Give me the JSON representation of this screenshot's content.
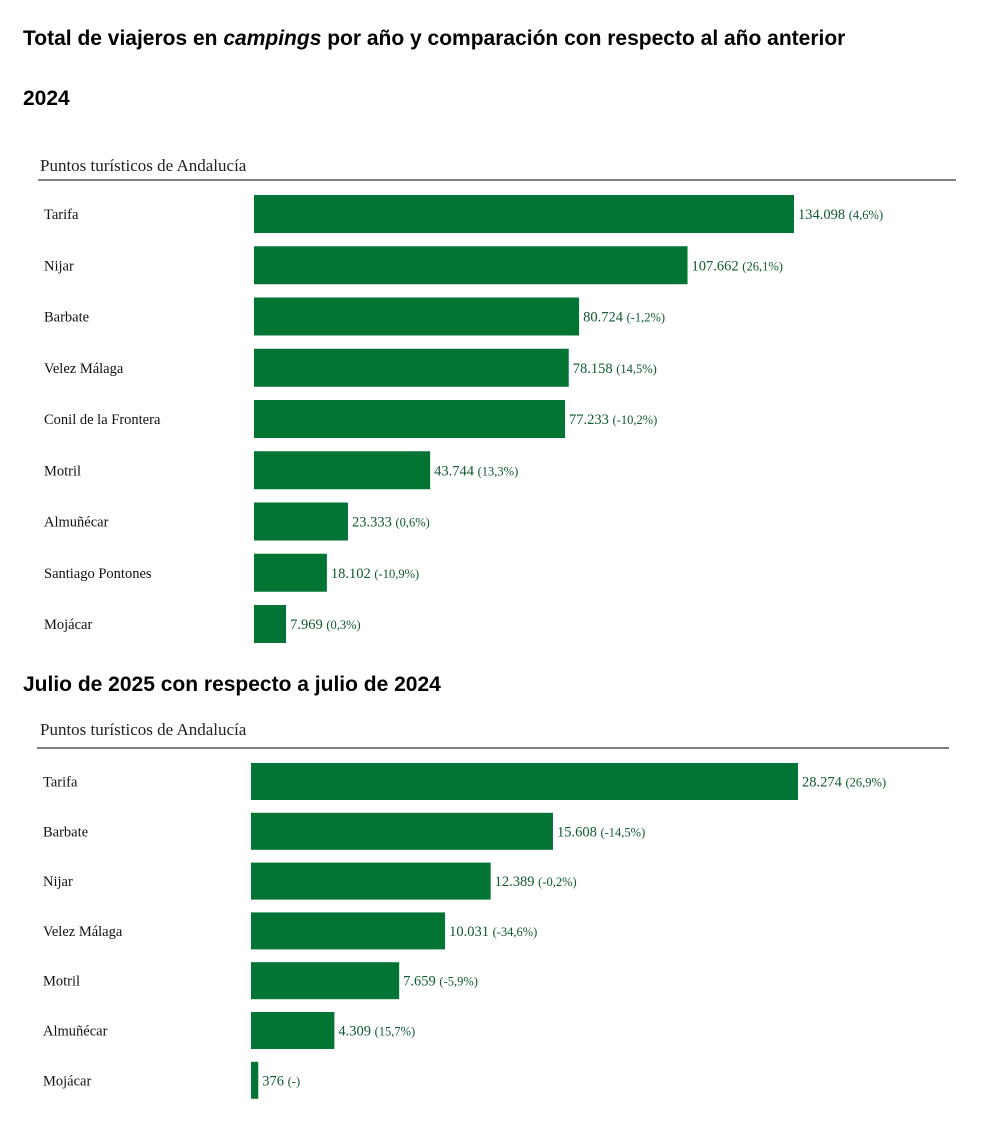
{
  "page": {
    "title_prefix": "Total de viajeros en ",
    "title_emphasis": "campings",
    "title_suffix": " por año y comparación con respecto al año anterior"
  },
  "colors": {
    "bar": "#027535",
    "value_text": "#0f5a2e",
    "rule": "#000000"
  },
  "sections": [
    {
      "title": "2024"
    },
    {
      "title": "Julio de 2025 con respecto a julio de 2024"
    }
  ],
  "chart_data": [
    {
      "type": "bar",
      "orientation": "horizontal",
      "header_label": "Puntos turísticos de Andalucía",
      "categories": [
        "Tarifa",
        "Nijar",
        "Barbate",
        "Velez Málaga",
        "Conil de la Frontera",
        "Motril",
        "Almuñécar",
        "Santiago Pontones",
        "Mojácar"
      ],
      "values": [
        134098,
        107662,
        80724,
        78158,
        77233,
        43744,
        23333,
        18102,
        7969
      ],
      "value_labels": [
        "134.098",
        "107.662",
        "80.724",
        "78.158",
        "77.233",
        "43.744",
        "23.333",
        "18.102",
        "7.969"
      ],
      "change_labels": [
        "(4,6%)",
        "(26,1%)",
        "(-1,2%)",
        "(14,5%)",
        "(-10,2%)",
        "(13,3%)",
        "(0,6%)",
        "(-10,9%)",
        "(0,3%)"
      ],
      "grid": false,
      "legend": "none"
    },
    {
      "type": "bar",
      "orientation": "horizontal",
      "header_label": "Puntos turísticos de Andalucía",
      "categories": [
        "Tarifa",
        "Barbate",
        "Nijar",
        "Velez Málaga",
        "Motril",
        "Almuñécar",
        "Mojácar"
      ],
      "values": [
        28274,
        15608,
        12389,
        10031,
        7659,
        4309,
        376
      ],
      "value_labels": [
        "28.274",
        "15.608",
        "12.389",
        "10.031",
        "7.659",
        "4.309",
        "376"
      ],
      "change_labels": [
        "(26,9%)",
        "(-14,5%)",
        "(-0,2%)",
        "(-34,6%)",
        "(-5,9%)",
        "(15,7%)",
        "(-)"
      ],
      "grid": false,
      "legend": "none"
    }
  ]
}
